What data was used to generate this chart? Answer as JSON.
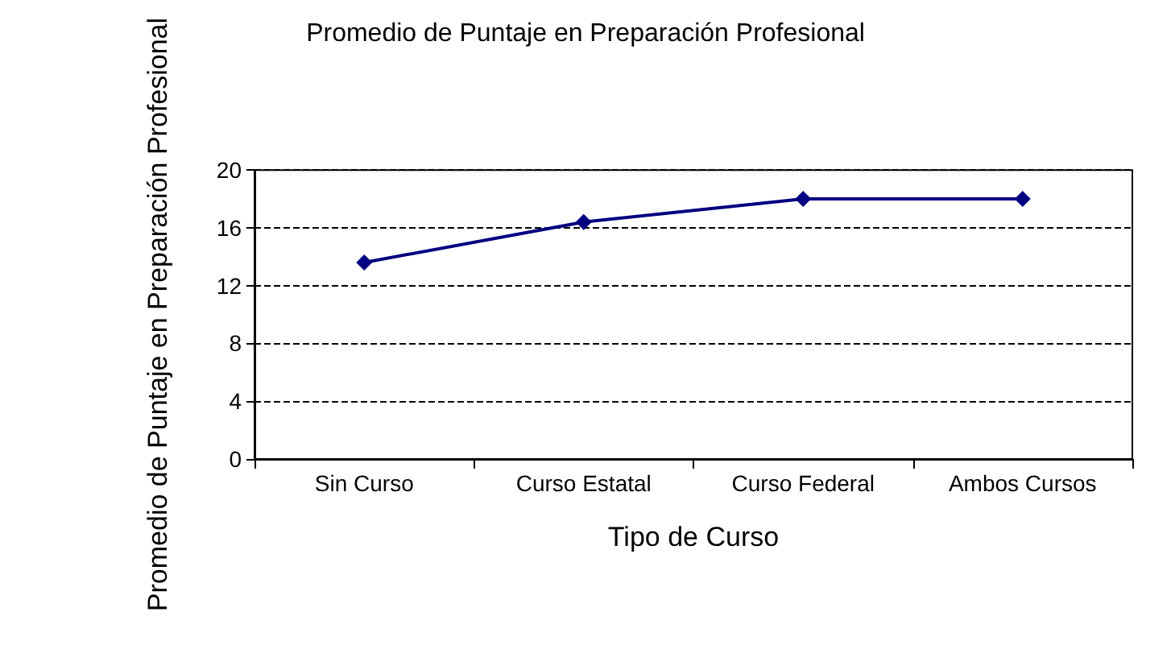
{
  "chart_data": {
    "type": "line",
    "title": "Promedio de Puntaje en Preparación Profesional",
    "xlabel": "Tipo de Curso",
    "ylabel": "Promedio de Puntaje en Preparación Profesional",
    "categories": [
      "Sin Curso",
      "Curso Estatal",
      "Curso Federal",
      "Ambos Cursos"
    ],
    "series": [
      {
        "color": "#000080",
        "values": [
          13.6,
          16.4,
          18.0,
          18.0
        ]
      }
    ],
    "ylim": [
      0,
      20
    ],
    "yticks": [
      0,
      4,
      8,
      12,
      16,
      20
    ],
    "grid": "y",
    "marker": "diamond",
    "line_style": "solid"
  }
}
